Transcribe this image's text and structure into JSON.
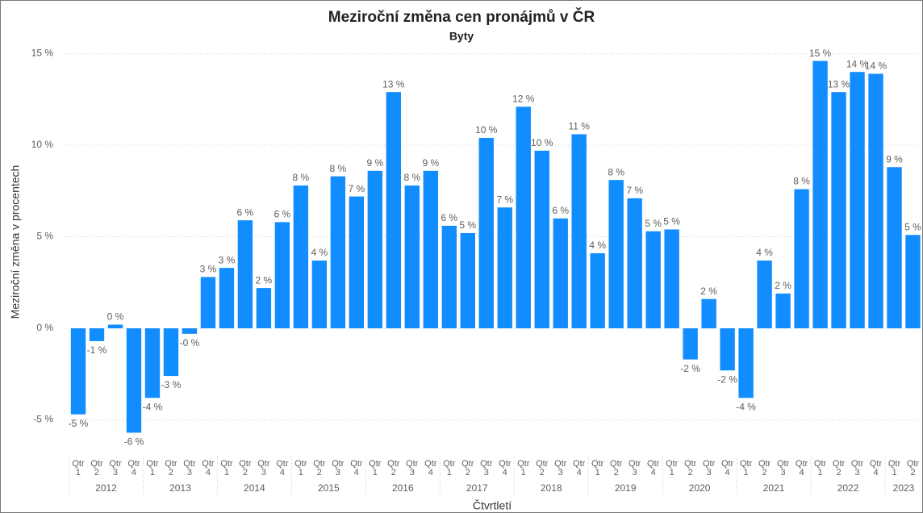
{
  "chart_data": {
    "type": "bar",
    "title": "Meziroční změna cen pronájmů v ČR",
    "subtitle": "Byty",
    "y_axis_label": "Meziroční změna v procentech",
    "x_axis_label": "Čtvrtletí",
    "color": "#118dff",
    "grid": true,
    "categories": [
      "Qtr 1",
      "Qtr 2",
      "Qtr 3",
      "Qtr 4",
      "Qtr 1",
      "Qtr 2",
      "Qtr 3",
      "Qtr 4",
      "Qtr 1",
      "Qtr 2",
      "Qtr 3",
      "Qtr 4",
      "Qtr 1",
      "Qtr 2",
      "Qtr 3",
      "Qtr 4",
      "Qtr 1",
      "Qtr 2",
      "Qtr 3",
      "Qtr 4",
      "Qtr 1",
      "Qtr 2",
      "Qtr 3",
      "Qtr 4",
      "Qtr 1",
      "Qtr 2",
      "Qtr 3",
      "Qtr 4",
      "Qtr 1",
      "Qtr 2",
      "Qtr 3",
      "Qtr 4",
      "Qtr 1",
      "Qtr 2",
      "Qtr 3",
      "Qtr 4",
      "Qtr 1",
      "Qtr 2",
      "Qtr 3",
      "Qtr 4",
      "Qtr 1",
      "Qtr 2",
      "Qtr 3",
      "Qtr 4",
      "Qtr 1",
      "Qtr 2"
    ],
    "years": [
      "2012",
      "2013",
      "2014",
      "2015",
      "2016",
      "2017",
      "2018",
      "2019",
      "2020",
      "2021",
      "2022",
      "2023"
    ],
    "values": [
      -4.7,
      -0.7,
      0.2,
      -5.7,
      -3.8,
      -2.6,
      -0.3,
      2.8,
      3.3,
      5.9,
      2.2,
      5.8,
      7.8,
      3.7,
      8.3,
      7.2,
      8.6,
      12.9,
      7.8,
      8.6,
      5.6,
      5.2,
      10.4,
      6.6,
      12.1,
      9.7,
      6.0,
      10.6,
      4.1,
      8.1,
      7.1,
      5.3,
      5.4,
      -1.7,
      1.6,
      -2.3,
      -3.8,
      3.7,
      1.9,
      7.6,
      14.6,
      12.9,
      14.0,
      13.9,
      8.8,
      5.1
    ],
    "value_labels": [
      "-5 %",
      "-1 %",
      "0 %",
      "-6 %",
      "-4 %",
      "-3 %",
      "-0 %",
      "3 %",
      "3 %",
      "6 %",
      "2 %",
      "6 %",
      "8 %",
      "4 %",
      "8 %",
      "7 %",
      "9 %",
      "13 %",
      "8 %",
      "9 %",
      "6 %",
      "5 %",
      "10 %",
      "7 %",
      "12 %",
      "10 %",
      "6 %",
      "11 %",
      "4 %",
      "8 %",
      "7 %",
      "5 %",
      "5 %",
      "-2 %",
      "2 %",
      "-2 %",
      "-4 %",
      "4 %",
      "2 %",
      "8 %",
      "15 %",
      "13 %",
      "14 %",
      "14 %",
      "9 %",
      "5 %"
    ],
    "ylim": [
      -6.5,
      16
    ],
    "yticks": [
      {
        "value": -5,
        "label": "-5 %"
      },
      {
        "value": 0,
        "label": "0 %"
      },
      {
        "value": 5,
        "label": "5 %"
      },
      {
        "value": 10,
        "label": "10 %"
      },
      {
        "value": 15,
        "label": "15 %"
      }
    ]
  }
}
